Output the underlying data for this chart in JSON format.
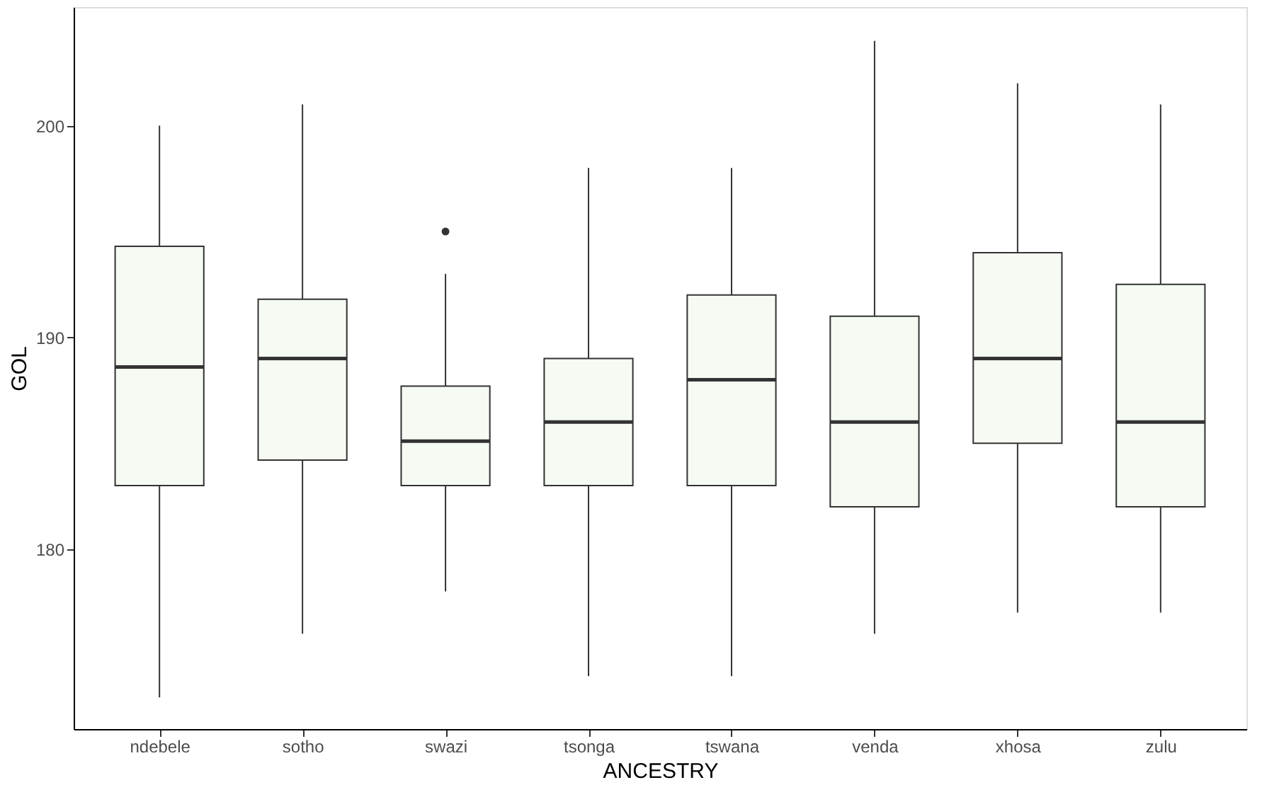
{
  "chart_data": {
    "type": "box",
    "xlabel": "ANCESTRY",
    "ylabel": "GOL",
    "categories": [
      "ndebele",
      "sotho",
      "swazi",
      "tsonga",
      "tswana",
      "venda",
      "xhosa",
      "zulu"
    ],
    "boxes": [
      {
        "low": 173,
        "q1": 183,
        "median": 188.6,
        "q3": 194.3,
        "high": 200
      },
      {
        "low": 176,
        "q1": 184.2,
        "median": 189,
        "q3": 191.8,
        "high": 201
      },
      {
        "low": 178,
        "q1": 183,
        "median": 185.1,
        "q3": 187.7,
        "high": 193,
        "outliers": [
          195
        ]
      },
      {
        "low": 174,
        "q1": 183,
        "median": 186,
        "q3": 189,
        "high": 198
      },
      {
        "low": 174,
        "q1": 183,
        "median": 188,
        "q3": 192,
        "high": 198
      },
      {
        "low": 176,
        "q1": 182,
        "median": 186,
        "q3": 191,
        "high": 204
      },
      {
        "low": 177,
        "q1": 185,
        "median": 189,
        "q3": 194,
        "high": 202
      },
      {
        "low": 177,
        "q1": 182,
        "median": 186,
        "q3": 192.5,
        "high": 201
      }
    ],
    "color": "#f5faf3",
    "ylim": [
      171.5,
      205.6
    ],
    "yticks": [
      180,
      190,
      200
    ],
    "grid": false
  }
}
